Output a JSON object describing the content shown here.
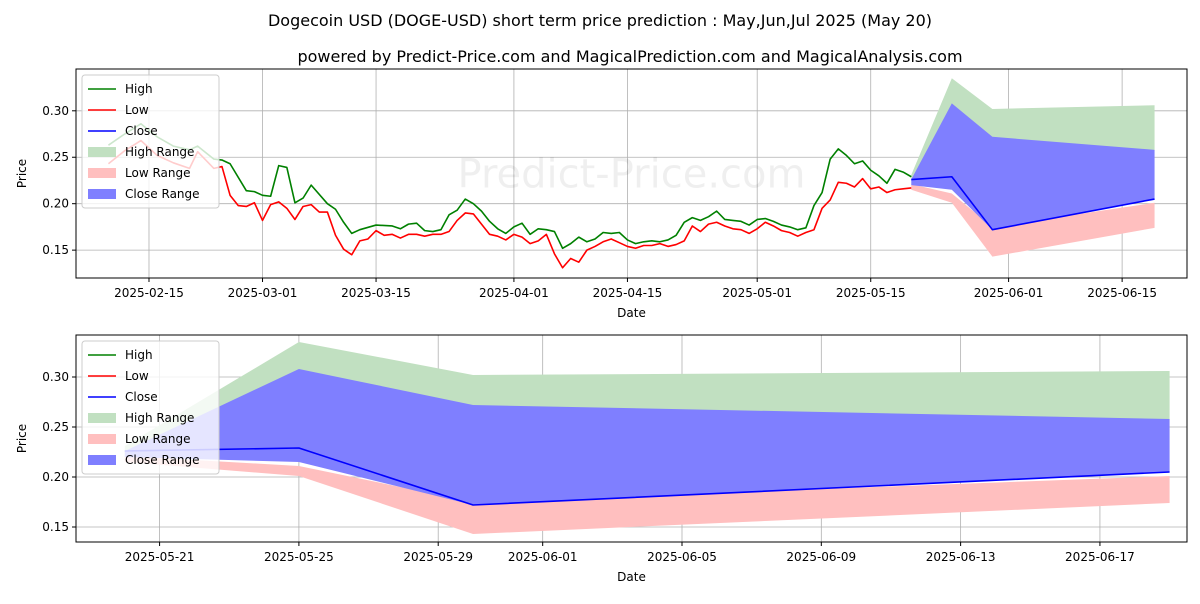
{
  "header": {
    "title": "Dogecoin USD (DOGE-USD) short term price prediction : May,Jun,Jul 2025 (May 20)",
    "subtitle": "powered by Predict-Price.com and MagicalPrediction.com and MagicalAnalysis.com"
  },
  "watermark": "Predict-Price.com",
  "colors": {
    "high": "#008000",
    "low": "#ff0000",
    "close": "#0000ff",
    "high_range": "#c1e0c1",
    "low_range": "#ffbfbf",
    "close_range": "#7f7fff",
    "grid": "#b0b0b0"
  },
  "chart_data": [
    {
      "type": "line",
      "xlabel": "Date",
      "ylabel": "Price",
      "xlim": [
        "2025-02-06",
        "2025-06-23"
      ],
      "ylim": [
        0.12,
        0.345
      ],
      "x_ticks": [
        "2025-02-15",
        "2025-03-01",
        "2025-03-15",
        "2025-04-01",
        "2025-04-15",
        "2025-05-01",
        "2025-05-15",
        "2025-06-01",
        "2025-06-15"
      ],
      "y_ticks": [
        "0.15",
        "0.20",
        "0.25",
        "0.30"
      ],
      "grid": true,
      "legend": "top-left",
      "legend_entries": [
        "High",
        "Low",
        "Close",
        "High Range",
        "Low Range",
        "Close Range"
      ],
      "series": [
        {
          "name": "High",
          "x": [
            "2025-02-10",
            "2025-02-12",
            "2025-02-14",
            "2025-02-16",
            "2025-02-18",
            "2025-02-20",
            "2025-02-21",
            "2025-02-23",
            "2025-02-24",
            "2025-02-25",
            "2025-02-27",
            "2025-02-28",
            "2025-03-01",
            "2025-03-02",
            "2025-03-03",
            "2025-03-04",
            "2025-03-05",
            "2025-03-06",
            "2025-03-07",
            "2025-03-09",
            "2025-03-10",
            "2025-03-11",
            "2025-03-12",
            "2025-03-13",
            "2025-03-15",
            "2025-03-17",
            "2025-03-18",
            "2025-03-19",
            "2025-03-20",
            "2025-03-21",
            "2025-03-22",
            "2025-03-23",
            "2025-03-24",
            "2025-03-25",
            "2025-03-26",
            "2025-03-27",
            "2025-03-28",
            "2025-03-29",
            "2025-03-30",
            "2025-03-31",
            "2025-04-01",
            "2025-04-02",
            "2025-04-03",
            "2025-04-04",
            "2025-04-05",
            "2025-04-06",
            "2025-04-07",
            "2025-04-08",
            "2025-04-09",
            "2025-04-10",
            "2025-04-11",
            "2025-04-12",
            "2025-04-13",
            "2025-04-14",
            "2025-04-15",
            "2025-04-16",
            "2025-04-17",
            "2025-04-18",
            "2025-04-19",
            "2025-04-20",
            "2025-04-21",
            "2025-04-22",
            "2025-04-23",
            "2025-04-24",
            "2025-04-25",
            "2025-04-26",
            "2025-04-27",
            "2025-04-28",
            "2025-04-29",
            "2025-04-30",
            "2025-05-01",
            "2025-05-02",
            "2025-05-03",
            "2025-05-04",
            "2025-05-05",
            "2025-05-06",
            "2025-05-07",
            "2025-05-08",
            "2025-05-09",
            "2025-05-10",
            "2025-05-11",
            "2025-05-12",
            "2025-05-13",
            "2025-05-14",
            "2025-05-15",
            "2025-05-16",
            "2025-05-17",
            "2025-05-18",
            "2025-05-19",
            "2025-05-20"
          ],
          "values": [
            0.263,
            0.275,
            0.286,
            0.272,
            0.262,
            0.258,
            0.262,
            0.248,
            0.247,
            0.243,
            0.214,
            0.213,
            0.209,
            0.208,
            0.241,
            0.239,
            0.201,
            0.206,
            0.22,
            0.2,
            0.194,
            0.18,
            0.168,
            0.172,
            0.177,
            0.176,
            0.173,
            0.178,
            0.179,
            0.171,
            0.17,
            0.172,
            0.188,
            0.193,
            0.205,
            0.2,
            0.192,
            0.181,
            0.173,
            0.168,
            0.175,
            0.179,
            0.167,
            0.173,
            0.172,
            0.17,
            0.152,
            0.157,
            0.164,
            0.159,
            0.162,
            0.169,
            0.168,
            0.169,
            0.161,
            0.157,
            0.159,
            0.16,
            0.159,
            0.161,
            0.166,
            0.18,
            0.185,
            0.182,
            0.186,
            0.192,
            0.183,
            0.182,
            0.181,
            0.177,
            0.183,
            0.184,
            0.181,
            0.177,
            0.175,
            0.172,
            0.174,
            0.198,
            0.212,
            0.248,
            0.259,
            0.252,
            0.243,
            0.246,
            0.236,
            0.23,
            0.222,
            0.237,
            0.234,
            0.229
          ]
        },
        {
          "name": "Low",
          "x": [
            "2025-02-10",
            "2025-02-12",
            "2025-02-14",
            "2025-02-16",
            "2025-02-18",
            "2025-02-20",
            "2025-02-21",
            "2025-02-23",
            "2025-02-24",
            "2025-02-25",
            "2025-02-26",
            "2025-02-27",
            "2025-02-28",
            "2025-03-01",
            "2025-03-02",
            "2025-03-03",
            "2025-03-04",
            "2025-03-05",
            "2025-03-06",
            "2025-03-07",
            "2025-03-08",
            "2025-03-09",
            "2025-03-10",
            "2025-03-11",
            "2025-03-12",
            "2025-03-13",
            "2025-03-14",
            "2025-03-15",
            "2025-03-16",
            "2025-03-17",
            "2025-03-18",
            "2025-03-19",
            "2025-03-20",
            "2025-03-21",
            "2025-03-22",
            "2025-03-23",
            "2025-03-24",
            "2025-03-25",
            "2025-03-26",
            "2025-03-27",
            "2025-03-28",
            "2025-03-29",
            "2025-03-30",
            "2025-03-31",
            "2025-04-01",
            "2025-04-02",
            "2025-04-03",
            "2025-04-04",
            "2025-04-05",
            "2025-04-06",
            "2025-04-07",
            "2025-04-08",
            "2025-04-09",
            "2025-04-10",
            "2025-04-11",
            "2025-04-12",
            "2025-04-13",
            "2025-04-14",
            "2025-04-15",
            "2025-04-16",
            "2025-04-17",
            "2025-04-18",
            "2025-04-19",
            "2025-04-20",
            "2025-04-21",
            "2025-04-22",
            "2025-04-23",
            "2025-04-24",
            "2025-04-25",
            "2025-04-26",
            "2025-04-27",
            "2025-04-28",
            "2025-04-29",
            "2025-04-30",
            "2025-05-01",
            "2025-05-02",
            "2025-05-03",
            "2025-05-04",
            "2025-05-05",
            "2025-05-06",
            "2025-05-07",
            "2025-05-08",
            "2025-05-09",
            "2025-05-10",
            "2025-05-11",
            "2025-05-12",
            "2025-05-13",
            "2025-05-14",
            "2025-05-15",
            "2025-05-16",
            "2025-05-17",
            "2025-05-18",
            "2025-05-19",
            "2025-05-20"
          ],
          "values": [
            0.243,
            0.257,
            0.268,
            0.252,
            0.244,
            0.238,
            0.256,
            0.238,
            0.24,
            0.209,
            0.198,
            0.197,
            0.201,
            0.182,
            0.199,
            0.202,
            0.195,
            0.183,
            0.197,
            0.199,
            0.191,
            0.191,
            0.166,
            0.151,
            0.145,
            0.16,
            0.162,
            0.171,
            0.166,
            0.167,
            0.163,
            0.167,
            0.167,
            0.165,
            0.167,
            0.167,
            0.17,
            0.182,
            0.19,
            0.189,
            0.178,
            0.167,
            0.165,
            0.161,
            0.167,
            0.164,
            0.157,
            0.16,
            0.167,
            0.146,
            0.131,
            0.141,
            0.137,
            0.15,
            0.154,
            0.159,
            0.162,
            0.158,
            0.154,
            0.152,
            0.155,
            0.155,
            0.157,
            0.154,
            0.156,
            0.16,
            0.176,
            0.17,
            0.178,
            0.18,
            0.176,
            0.173,
            0.172,
            0.168,
            0.173,
            0.18,
            0.176,
            0.171,
            0.169,
            0.165,
            0.169,
            0.172,
            0.195,
            0.204,
            0.223,
            0.222,
            0.218,
            0.227,
            0.216,
            0.218,
            0.212,
            0.215,
            0.216,
            0.217
          ]
        },
        {
          "name": "Close",
          "x": [
            "2025-05-20",
            "2025-05-25",
            "2025-05-30",
            "2025-06-19"
          ],
          "values": [
            0.226,
            0.229,
            0.172,
            0.205
          ]
        }
      ],
      "ranges": [
        {
          "name": "High Range",
          "x": [
            "2025-05-20",
            "2025-05-25",
            "2025-05-30",
            "2025-06-19"
          ],
          "upper": [
            0.231,
            0.335,
            0.302,
            0.306
          ],
          "lower": [
            0.225,
            0.268,
            0.24,
            0.257
          ]
        },
        {
          "name": "Low Range",
          "x": [
            "2025-05-20",
            "2025-05-25",
            "2025-05-30",
            "2025-06-19"
          ],
          "upper": [
            0.221,
            0.211,
            0.175,
            0.201
          ],
          "lower": [
            0.215,
            0.201,
            0.143,
            0.174
          ]
        },
        {
          "name": "Close Range",
          "x": [
            "2025-05-20",
            "2025-05-25",
            "2025-05-30",
            "2025-06-19"
          ],
          "upper": [
            0.226,
            0.308,
            0.272,
            0.258
          ],
          "lower": [
            0.22,
            0.215,
            0.172,
            0.205
          ]
        }
      ]
    },
    {
      "type": "line",
      "xlabel": "Date",
      "ylabel": "Price",
      "xlim": [
        "2025-05-18.6",
        "2025-06-19.5"
      ],
      "ylim": [
        0.135,
        0.342
      ],
      "x_ticks": [
        "2025-05-21",
        "2025-05-25",
        "2025-05-29",
        "2025-06-01",
        "2025-06-05",
        "2025-06-09",
        "2025-06-13",
        "2025-06-17"
      ],
      "y_ticks": [
        "0.15",
        "0.20",
        "0.25",
        "0.30"
      ],
      "grid": true,
      "legend": "top-left",
      "legend_entries": [
        "High",
        "Low",
        "Close",
        "High Range",
        "Low Range",
        "Close Range"
      ],
      "series": [
        {
          "name": "High",
          "x": [
            "2025-05-20"
          ],
          "values": [
            0.229
          ]
        },
        {
          "name": "Low",
          "x": [
            "2025-05-20"
          ],
          "values": [
            0.217
          ]
        },
        {
          "name": "Close",
          "x": [
            "2025-05-20",
            "2025-05-25",
            "2025-05-30",
            "2025-06-19"
          ],
          "values": [
            0.226,
            0.229,
            0.172,
            0.205
          ]
        }
      ],
      "ranges": [
        {
          "name": "High Range",
          "x": [
            "2025-05-20",
            "2025-05-25",
            "2025-05-30",
            "2025-06-19"
          ],
          "upper": [
            0.231,
            0.335,
            0.302,
            0.306
          ],
          "lower": [
            0.225,
            0.268,
            0.24,
            0.257
          ]
        },
        {
          "name": "Low Range",
          "x": [
            "2025-05-20",
            "2025-05-25",
            "2025-05-30",
            "2025-06-19"
          ],
          "upper": [
            0.221,
            0.211,
            0.175,
            0.201
          ],
          "lower": [
            0.215,
            0.201,
            0.143,
            0.174
          ]
        },
        {
          "name": "Close Range",
          "x": [
            "2025-05-20",
            "2025-05-25",
            "2025-05-30",
            "2025-06-19"
          ],
          "upper": [
            0.226,
            0.308,
            0.272,
            0.258
          ],
          "lower": [
            0.22,
            0.215,
            0.172,
            0.205
          ]
        }
      ]
    }
  ]
}
